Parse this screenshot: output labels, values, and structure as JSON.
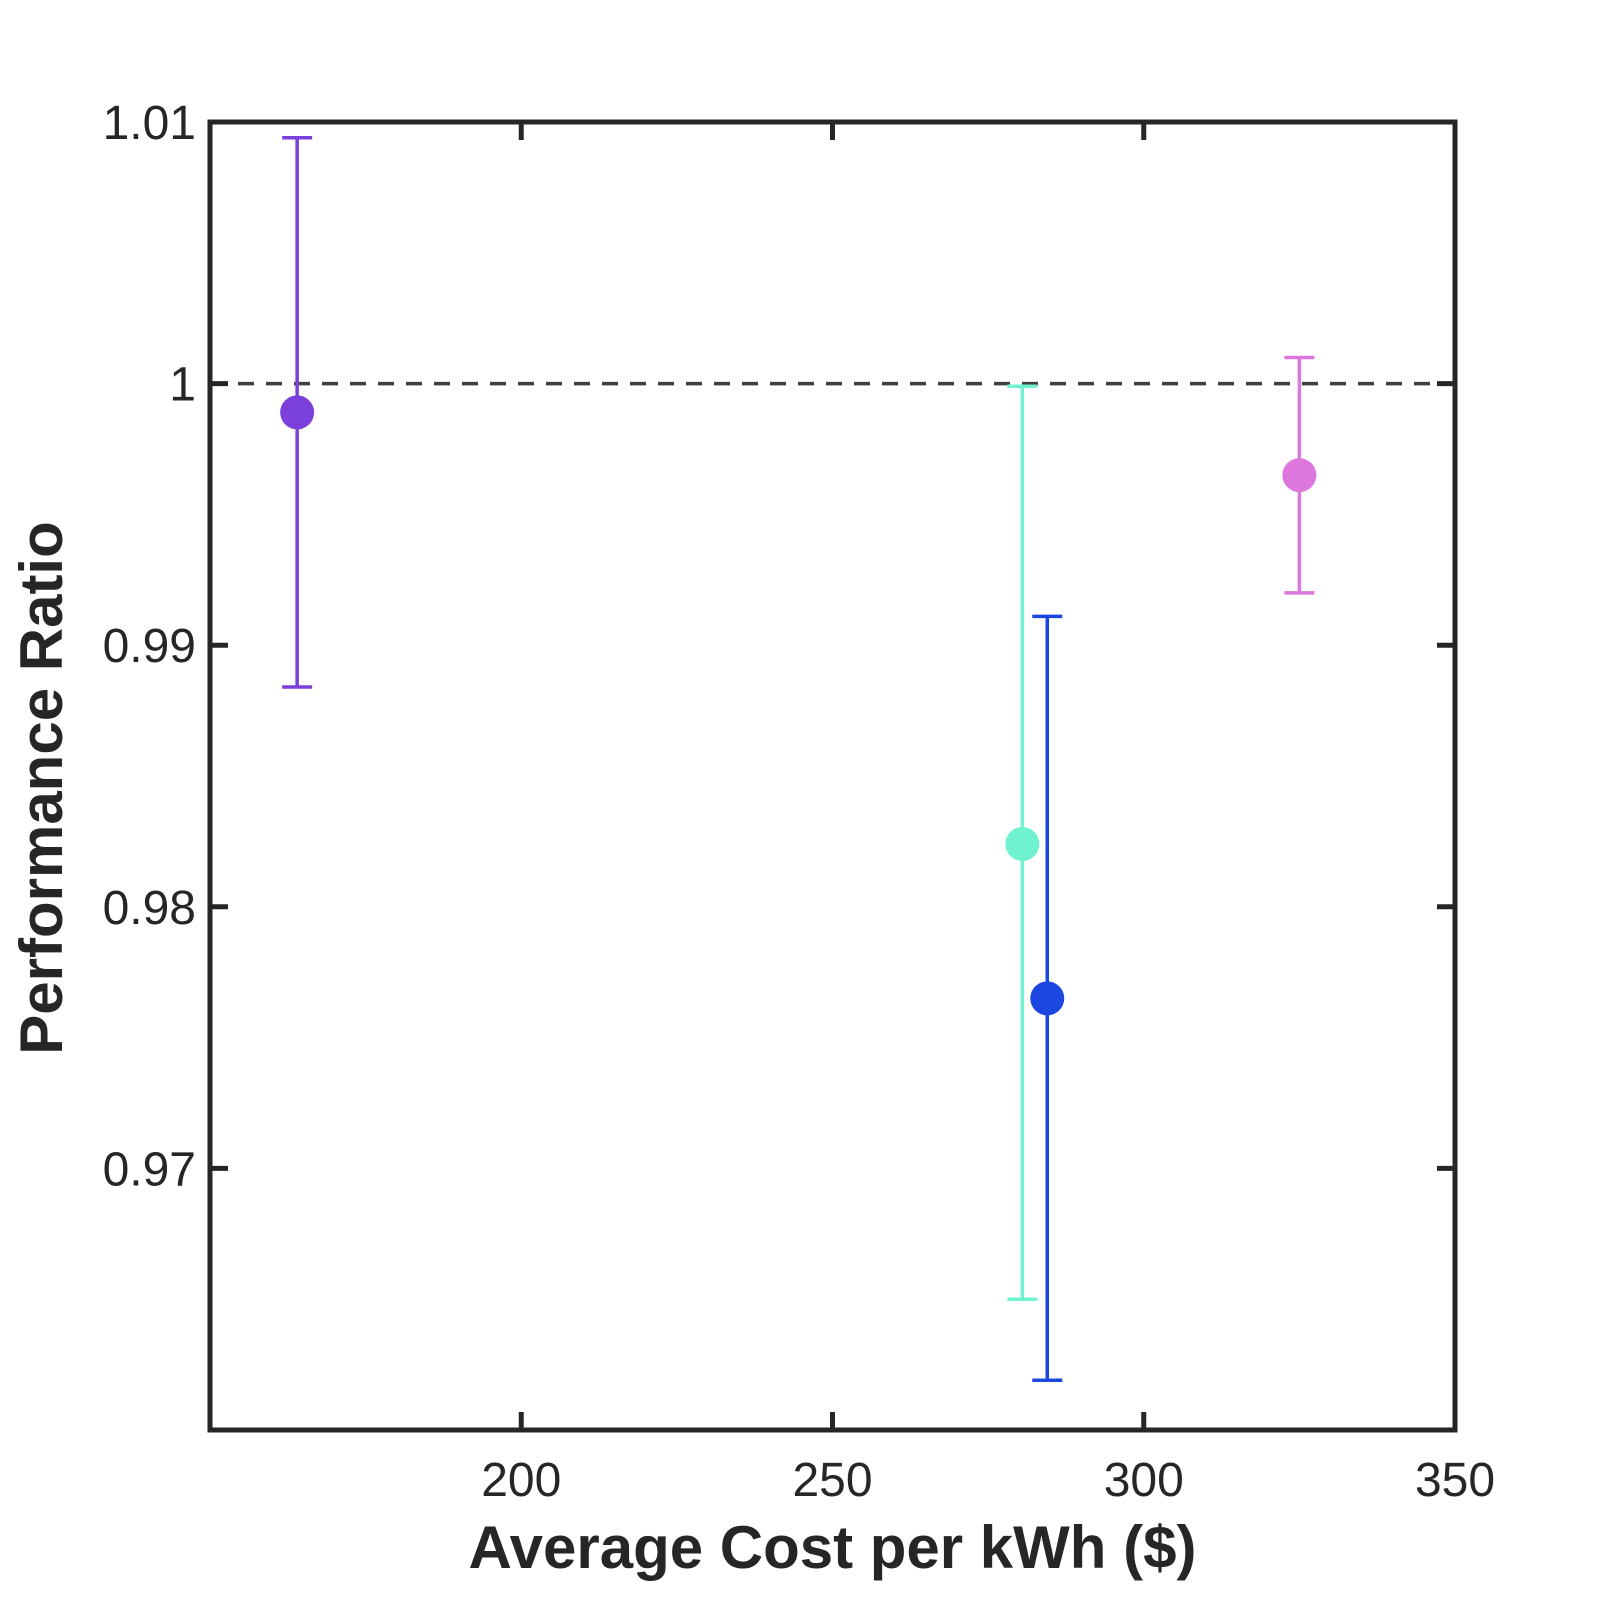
{
  "chart_data": {
    "type": "scatter",
    "title": "",
    "xlabel": "Average Cost per kWh ($)",
    "ylabel": "Performance Ratio",
    "xlim": [
      150,
      350
    ],
    "ylim": [
      0.96,
      1.01
    ],
    "xticks": [
      200,
      250,
      300,
      350
    ],
    "xtick_labels": [
      "200",
      "250",
      "300",
      "350"
    ],
    "yticks": [
      0.97,
      0.98,
      0.99,
      1.0,
      1.01
    ],
    "ytick_labels": [
      "0.97",
      "0.98",
      "0.99",
      "1",
      "1.01"
    ],
    "grid": false,
    "reference_line": {
      "y": 1.0,
      "style": "dashed",
      "color": "#404040"
    },
    "points": [
      {
        "x": 164,
        "y": 0.9989,
        "lower": 0.9884,
        "upper": 1.0094,
        "color": "#7B3FDB"
      },
      {
        "x": 280.5,
        "y": 0.9824,
        "lower": 0.965,
        "upper": 0.9999,
        "color": "#6FF2D0"
      },
      {
        "x": 284.5,
        "y": 0.9765,
        "lower": 0.9619,
        "upper": 0.9911,
        "color": "#1B47E0"
      },
      {
        "x": 325,
        "y": 0.9965,
        "lower": 0.992,
        "upper": 1.001,
        "color": "#DD77DD"
      }
    ]
  }
}
